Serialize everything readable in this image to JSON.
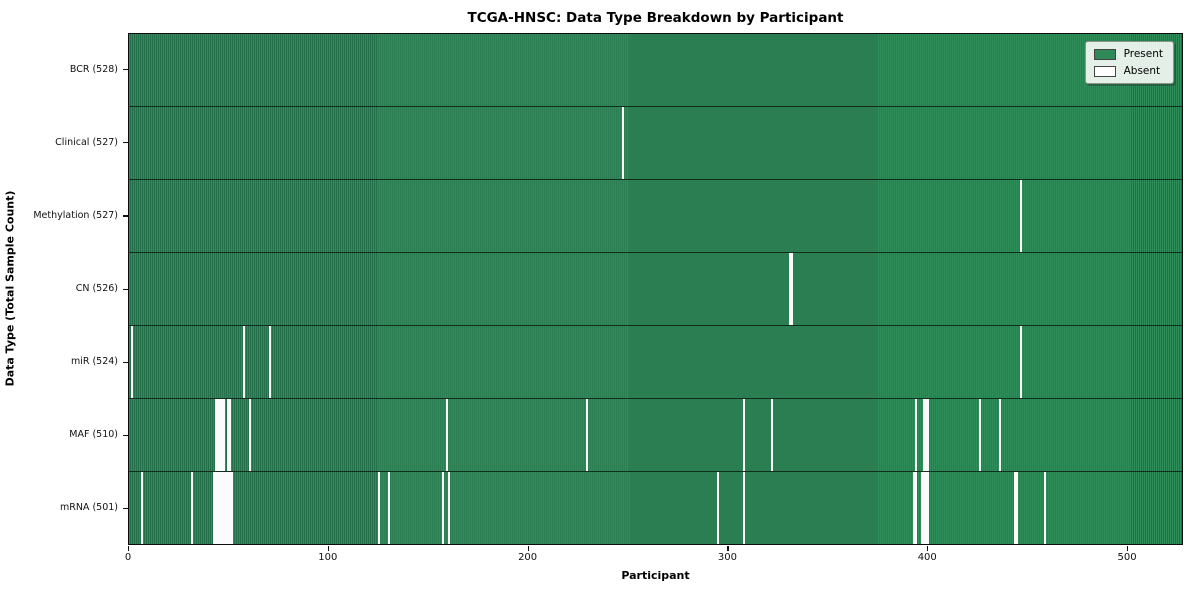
{
  "chart_data": {
    "type": "heatmap",
    "title": "TCGA-HNSC: Data Type Breakdown by Participant",
    "xlabel": "Participant",
    "ylabel": "Data Type (Total Sample Count)",
    "xlim": [
      0,
      528
    ],
    "n_participants": 528,
    "x_ticks": [
      0,
      100,
      200,
      300,
      400,
      500
    ],
    "grid": false,
    "legend_position": "upper right",
    "legend": [
      {
        "label": "Present",
        "color": "#2e8b57"
      },
      {
        "label": "Absent",
        "color": "#ffffff"
      }
    ],
    "cell_states": {
      "present": 1,
      "absent": 0
    },
    "rows": [
      {
        "label": "BCR (528)",
        "data_type": "BCR",
        "total": 528,
        "absent_participants": []
      },
      {
        "label": "Clinical (527)",
        "data_type": "Clinical",
        "total": 527,
        "absent_participants": [
          247
        ]
      },
      {
        "label": "Methylation (527)",
        "data_type": "Methylation",
        "total": 527,
        "absent_participants": [
          447
        ]
      },
      {
        "label": "CN (526)",
        "data_type": "CN",
        "total": 526,
        "absent_participants": [
          331,
          332
        ]
      },
      {
        "label": "miR (524)",
        "data_type": "miR",
        "total": 524,
        "absent_participants": [
          1,
          57,
          70,
          447
        ]
      },
      {
        "label": "MAF (510)",
        "data_type": "MAF",
        "total": 510,
        "absent_participants": [
          43,
          44,
          45,
          46,
          47,
          49,
          50,
          60,
          159,
          229,
          308,
          322,
          394,
          398,
          399,
          400,
          426,
          436
        ]
      },
      {
        "label": "mRNA (501)",
        "data_type": "mRNA",
        "total": 501,
        "absent_participants": [
          6,
          31,
          42,
          43,
          44,
          45,
          46,
          47,
          48,
          49,
          50,
          51,
          125,
          130,
          157,
          160,
          295,
          308,
          393,
          394,
          397,
          398,
          399,
          400,
          444,
          445,
          459
        ]
      }
    ],
    "colors": {
      "present": "#2e8b57",
      "present_edge": "#24704a",
      "absent": "#fbfbfb",
      "row_border": "#0d0d0d"
    }
  }
}
